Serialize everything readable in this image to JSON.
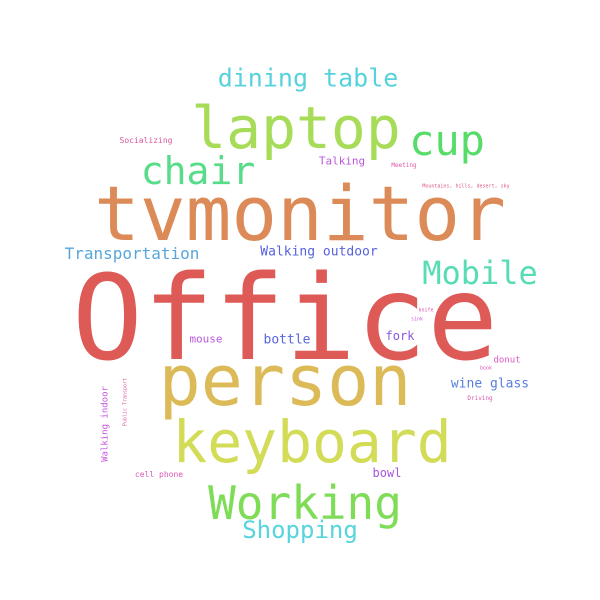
{
  "words": [
    {
      "text": "Office",
      "color": "#de5a57"
    },
    {
      "text": "tvmonitor",
      "color": "#dc8a57"
    },
    {
      "text": "person",
      "color": "#dcba57"
    },
    {
      "text": "keyboard",
      "color": "#d2dc57"
    },
    {
      "text": "laptop",
      "color": "#a6dc57"
    },
    {
      "text": "Working",
      "color": "#7edc57"
    },
    {
      "text": "chair",
      "color": "#57dc8a"
    },
    {
      "text": "cup",
      "color": "#57dc6a"
    },
    {
      "text": "Mobile",
      "color": "#57dcb6"
    },
    {
      "text": "dining table",
      "color": "#57d2dc"
    },
    {
      "text": "Shopping",
      "color": "#57d4dc"
    },
    {
      "text": "Transportation",
      "color": "#57a6dc"
    },
    {
      "text": "Walking outdoor",
      "color": "#5762dc"
    },
    {
      "text": "wine glass",
      "color": "#577edc"
    },
    {
      "text": "bottle",
      "color": "#5766dc"
    },
    {
      "text": "fork",
      "color": "#8a57dc"
    },
    {
      "text": "mouse",
      "color": "#ba57dc"
    },
    {
      "text": "bowl",
      "color": "#a657dc"
    },
    {
      "text": "Talking",
      "color": "#ba57dc"
    },
    {
      "text": "donut",
      "color": "#dc57c4"
    },
    {
      "text": "Walking indoor",
      "color": "#c457dc"
    },
    {
      "text": "cell phone",
      "color": "#dc57b6"
    },
    {
      "text": "Socializing",
      "color": "#dc579a"
    },
    {
      "text": "Meeting",
      "color": "#dc57a6"
    },
    {
      "text": "Mountains, hills, desert, sky",
      "color": "#dc5782"
    },
    {
      "text": "knife",
      "color": "#dc57aa"
    },
    {
      "text": "sink",
      "color": "#d257dc"
    },
    {
      "text": "book",
      "color": "#dc57c4"
    },
    {
      "text": "Driving",
      "color": "#dc57b0"
    },
    {
      "text": "Public Transport",
      "color": "#dc579a"
    }
  ]
}
